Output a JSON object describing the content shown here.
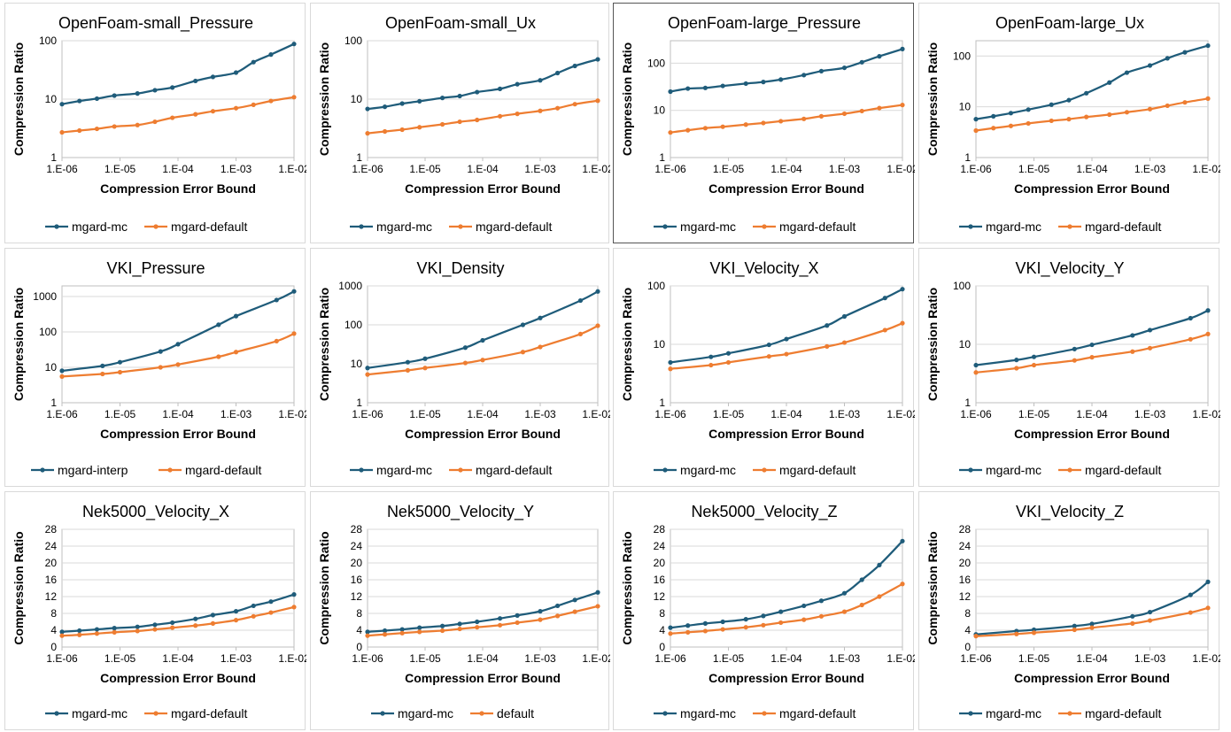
{
  "colors": {
    "mc": "#1f5c7a",
    "default": "#ee7d31",
    "grid": "#d9d9d9",
    "frame": "#bfbfbf"
  },
  "chart_data": [
    {
      "type": "line",
      "title": "OpenFoam-small_Pressure",
      "xlabel": "Compression Error Bound",
      "ylabel": "Compression Ratio",
      "xscale": "log",
      "yscale": "log",
      "xticks": [
        "1.E-06",
        "1.E-05",
        "1.E-04",
        "1.E-03",
        "1.E-02"
      ],
      "yticks": [
        "1",
        "10",
        "100"
      ],
      "ylim": [
        1,
        100
      ],
      "legend": "bottom",
      "series": [
        {
          "name": "mgard-mc",
          "x": [
            1e-06,
            2e-06,
            4e-06,
            8e-06,
            2e-05,
            4e-05,
            8e-05,
            0.0002,
            0.0004,
            0.001,
            0.002,
            0.004,
            0.01
          ],
          "y": [
            8.2,
            9.3,
            10.2,
            11.5,
            12.5,
            14.2,
            15.8,
            20.5,
            24,
            28.5,
            43,
            58,
            88
          ]
        },
        {
          "name": "mgard-default",
          "x": [
            1e-06,
            2e-06,
            4e-06,
            8e-06,
            2e-05,
            4e-05,
            8e-05,
            0.0002,
            0.0004,
            0.001,
            0.002,
            0.004,
            0.01
          ],
          "y": [
            2.7,
            2.9,
            3.1,
            3.4,
            3.6,
            4.1,
            4.8,
            5.5,
            6.2,
            7.0,
            8.0,
            9.3,
            10.8
          ]
        }
      ]
    },
    {
      "type": "line",
      "title": "OpenFoam-small_Ux",
      "xlabel": "Compression Error Bound",
      "ylabel": "Compression Ratio",
      "xscale": "log",
      "yscale": "log",
      "xticks": [
        "1.E-06",
        "1.E-05",
        "1.E-04",
        "1.E-03",
        "1.E-02"
      ],
      "yticks": [
        "1",
        "10",
        "100"
      ],
      "ylim": [
        1,
        100
      ],
      "legend": "bottom",
      "series": [
        {
          "name": "mgard-mc",
          "x": [
            1e-06,
            2e-06,
            4e-06,
            8e-06,
            2e-05,
            4e-05,
            8e-05,
            0.0002,
            0.0004,
            0.001,
            0.002,
            0.004,
            0.01
          ],
          "y": [
            6.8,
            7.4,
            8.4,
            9.2,
            10.5,
            11.3,
            13.2,
            15,
            18,
            21,
            28,
            37,
            48
          ]
        },
        {
          "name": "mgard-default",
          "x": [
            1e-06,
            2e-06,
            4e-06,
            8e-06,
            2e-05,
            4e-05,
            8e-05,
            0.0002,
            0.0004,
            0.001,
            0.002,
            0.004,
            0.01
          ],
          "y": [
            2.6,
            2.8,
            3.0,
            3.3,
            3.7,
            4.1,
            4.4,
            5.1,
            5.6,
            6.3,
            7.0,
            8.2,
            9.4
          ]
        }
      ]
    },
    {
      "type": "line",
      "title": "OpenFoam-large_Pressure",
      "xlabel": "Compression Error Bound",
      "ylabel": "Compression Ratio",
      "xscale": "log",
      "yscale": "log",
      "xticks": [
        "1.E-06",
        "1.E-05",
        "1.E-04",
        "1.E-03",
        "1.E-02"
      ],
      "yticks": [
        "1",
        "10",
        "100"
      ],
      "ylim": [
        1,
        300
      ],
      "legend": "bottom",
      "series": [
        {
          "name": "mgard-mc",
          "x": [
            1e-06,
            2e-06,
            4e-06,
            8e-06,
            2e-05,
            4e-05,
            8e-05,
            0.0002,
            0.0004,
            0.001,
            0.002,
            0.004,
            0.01
          ],
          "y": [
            25,
            29,
            30,
            33,
            37,
            40,
            45,
            56,
            68,
            80,
            105,
            140,
            200
          ]
        },
        {
          "name": "mgard-default",
          "x": [
            1e-06,
            2e-06,
            4e-06,
            8e-06,
            2e-05,
            4e-05,
            8e-05,
            0.0002,
            0.0004,
            0.001,
            0.002,
            0.004,
            0.01
          ],
          "y": [
            3.4,
            3.8,
            4.2,
            4.5,
            5.0,
            5.4,
            5.9,
            6.6,
            7.5,
            8.5,
            9.7,
            11.2,
            13
          ]
        }
      ]
    },
    {
      "type": "line",
      "title": "OpenFoam-large_Ux",
      "xlabel": "Compression Error Bound",
      "ylabel": "Compression Ratio",
      "xscale": "log",
      "yscale": "log",
      "xticks": [
        "1.E-06",
        "1.E-05",
        "1.E-04",
        "1.E-03",
        "1.E-02"
      ],
      "yticks": [
        "1",
        "10",
        "100"
      ],
      "ylim": [
        1,
        200
      ],
      "legend": "bottom",
      "series": [
        {
          "name": "mgard-mc",
          "x": [
            1e-06,
            2e-06,
            4e-06,
            8e-06,
            2e-05,
            4e-05,
            8e-05,
            0.0002,
            0.0004,
            0.001,
            0.002,
            0.004,
            0.01
          ],
          "y": [
            5.7,
            6.5,
            7.5,
            8.8,
            11,
            13.5,
            18.5,
            30,
            47,
            65,
            90,
            118,
            160
          ]
        },
        {
          "name": "mgard-default",
          "x": [
            1e-06,
            2e-06,
            4e-06,
            8e-06,
            2e-05,
            4e-05,
            8e-05,
            0.0002,
            0.0004,
            0.001,
            0.002,
            0.004,
            0.01
          ],
          "y": [
            3.4,
            3.8,
            4.2,
            4.7,
            5.3,
            5.7,
            6.3,
            7.0,
            7.8,
            9.0,
            10.5,
            12.2,
            14.5
          ]
        }
      ]
    },
    {
      "type": "line",
      "title": "VKI_Pressure",
      "xlabel": "Compression Error Bound",
      "ylabel": "Compression Ratio",
      "xscale": "log",
      "yscale": "log",
      "xticks": [
        "1.E-06",
        "1.E-05",
        "1.E-04",
        "1.E-03",
        "1.E-02"
      ],
      "yticks": [
        "1",
        "10",
        "100",
        "1000"
      ],
      "ylim": [
        1,
        2000
      ],
      "legend": "bottom",
      "series": [
        {
          "name": "mgard-interp",
          "x": [
            1e-06,
            5e-06,
            1e-05,
            5e-05,
            0.0001,
            0.0005,
            0.001,
            0.005,
            0.01
          ],
          "y": [
            8,
            11,
            14,
            28,
            45,
            160,
            280,
            800,
            1400
          ]
        },
        {
          "name": "mgard-default",
          "x": [
            1e-06,
            5e-06,
            1e-05,
            5e-05,
            0.0001,
            0.0005,
            0.001,
            0.005,
            0.01
          ],
          "y": [
            5.5,
            6.5,
            7.3,
            10,
            12,
            20,
            27,
            55,
            90
          ]
        }
      ]
    },
    {
      "type": "line",
      "title": "VKI_Density",
      "xlabel": "Compression Error Bound",
      "ylabel": "Compression Ratio",
      "xscale": "log",
      "yscale": "log",
      "xticks": [
        "1.E-06",
        "1.E-05",
        "1.E-04",
        "1.E-03",
        "1.E-02"
      ],
      "yticks": [
        "1",
        "10",
        "100",
        "1000"
      ],
      "ylim": [
        1,
        1000
      ],
      "legend": "bottom",
      "series": [
        {
          "name": "mgard-mc",
          "x": [
            1e-06,
            5e-06,
            1e-05,
            5e-05,
            0.0001,
            0.0005,
            0.001,
            0.005,
            0.01
          ],
          "y": [
            7.8,
            11,
            13.5,
            26,
            40,
            100,
            150,
            420,
            720
          ]
        },
        {
          "name": "mgard-default",
          "x": [
            1e-06,
            5e-06,
            1e-05,
            5e-05,
            0.0001,
            0.0005,
            0.001,
            0.005,
            0.01
          ],
          "y": [
            5.3,
            6.8,
            7.8,
            10.5,
            12.5,
            20,
            27,
            58,
            95
          ]
        }
      ]
    },
    {
      "type": "line",
      "title": "VKI_Velocity_X",
      "xlabel": "Compression Error Bound",
      "ylabel": "Compression Ratio",
      "xscale": "log",
      "yscale": "log",
      "xticks": [
        "1.E-06",
        "1.E-05",
        "1.E-04",
        "1.E-03",
        "1.E-02"
      ],
      "yticks": [
        "1",
        "10",
        "100"
      ],
      "ylim": [
        1,
        100
      ],
      "legend": "bottom",
      "series": [
        {
          "name": "mgard-mc",
          "x": [
            1e-06,
            5e-06,
            1e-05,
            5e-05,
            0.0001,
            0.0005,
            0.001,
            0.005,
            0.01
          ],
          "y": [
            4.9,
            6.1,
            7.0,
            9.8,
            12.3,
            21,
            30,
            62,
            88
          ]
        },
        {
          "name": "mgard-default",
          "x": [
            1e-06,
            5e-06,
            1e-05,
            5e-05,
            0.0001,
            0.0005,
            0.001,
            0.005,
            0.01
          ],
          "y": [
            3.8,
            4.4,
            4.9,
            6.2,
            6.8,
            9.2,
            10.7,
            17.5,
            23
          ]
        }
      ]
    },
    {
      "type": "line",
      "title": "VKI_Velocity_Y",
      "xlabel": "Compression Error Bound",
      "ylabel": "Compression Ratio",
      "xscale": "log",
      "yscale": "log",
      "xticks": [
        "1.E-06",
        "1.E-05",
        "1.E-04",
        "1.E-03",
        "1.E-02"
      ],
      "yticks": [
        "1",
        "10",
        "100"
      ],
      "ylim": [
        1,
        100
      ],
      "legend": "bottom",
      "series": [
        {
          "name": "mgard-mc",
          "x": [
            1e-06,
            5e-06,
            1e-05,
            5e-05,
            0.0001,
            0.0005,
            0.001,
            0.005,
            0.01
          ],
          "y": [
            4.4,
            5.4,
            6.1,
            8.3,
            9.8,
            14.2,
            17.5,
            28,
            38
          ]
        },
        {
          "name": "mgard-default",
          "x": [
            1e-06,
            5e-06,
            1e-05,
            5e-05,
            0.0001,
            0.0005,
            0.001,
            0.005,
            0.01
          ],
          "y": [
            3.3,
            3.9,
            4.4,
            5.3,
            6.0,
            7.5,
            8.6,
            12.2,
            15
          ]
        }
      ]
    },
    {
      "type": "line",
      "title": "Nek5000_Velocity_X",
      "xlabel": "Compression Error Bound",
      "ylabel": "Compression Ratio",
      "xscale": "log",
      "yscale": "linear",
      "xticks": [
        "1.E-06",
        "1.E-05",
        "1.E-04",
        "1.E-03",
        "1.E-02"
      ],
      "yticks": [
        "0",
        "4",
        "8",
        "12",
        "16",
        "20",
        "24",
        "28"
      ],
      "ylim": [
        0,
        28
      ],
      "legend": "bottom",
      "series": [
        {
          "name": "mgard-mc",
          "x": [
            1e-06,
            2e-06,
            4e-06,
            8e-06,
            2e-05,
            4e-05,
            8e-05,
            0.0002,
            0.0004,
            0.001,
            0.002,
            0.004,
            0.01
          ],
          "y": [
            3.6,
            3.9,
            4.2,
            4.5,
            4.8,
            5.3,
            5.8,
            6.7,
            7.6,
            8.5,
            9.8,
            10.8,
            12.5
          ]
        },
        {
          "name": "mgard-default",
          "x": [
            1e-06,
            2e-06,
            4e-06,
            8e-06,
            2e-05,
            4e-05,
            8e-05,
            0.0002,
            0.0004,
            0.001,
            0.002,
            0.004,
            0.01
          ],
          "y": [
            2.7,
            2.9,
            3.2,
            3.5,
            3.8,
            4.2,
            4.6,
            5.1,
            5.6,
            6.4,
            7.3,
            8.2,
            9.5
          ]
        }
      ]
    },
    {
      "type": "line",
      "title": "Nek5000_Velocity_Y",
      "xlabel": "Compression Error Bound",
      "ylabel": "Compression Ratio",
      "xscale": "log",
      "yscale": "linear",
      "xticks": [
        "1.E-06",
        "1.E-05",
        "1.E-04",
        "1.E-03",
        "1.E-02"
      ],
      "yticks": [
        "0",
        "4",
        "8",
        "12",
        "16",
        "20",
        "24",
        "28"
      ],
      "ylim": [
        0,
        28
      ],
      "legend": "bottom",
      "series": [
        {
          "name": "mgard-mc",
          "x": [
            1e-06,
            2e-06,
            4e-06,
            8e-06,
            2e-05,
            4e-05,
            8e-05,
            0.0002,
            0.0004,
            0.001,
            0.002,
            0.004,
            0.01
          ],
          "y": [
            3.6,
            3.9,
            4.2,
            4.6,
            5.0,
            5.5,
            6.0,
            6.8,
            7.5,
            8.5,
            9.8,
            11.2,
            13
          ]
        },
        {
          "name": "default",
          "x": [
            1e-06,
            2e-06,
            4e-06,
            8e-06,
            2e-05,
            4e-05,
            8e-05,
            0.0002,
            0.0004,
            0.001,
            0.002,
            0.004,
            0.01
          ],
          "y": [
            2.7,
            3.0,
            3.3,
            3.6,
            3.9,
            4.3,
            4.7,
            5.2,
            5.8,
            6.5,
            7.4,
            8.4,
            9.7
          ]
        }
      ]
    },
    {
      "type": "line",
      "title": "Nek5000_Velocity_Z",
      "xlabel": "Compression Error Bound",
      "ylabel": "Compression Ratio",
      "xscale": "log",
      "yscale": "linear",
      "xticks": [
        "1.E-06",
        "1.E-05",
        "1.E-04",
        "1.E-03",
        "1.E-02"
      ],
      "yticks": [
        "0",
        "4",
        "8",
        "12",
        "16",
        "20",
        "24",
        "28"
      ],
      "ylim": [
        0,
        28
      ],
      "legend": "bottom",
      "series": [
        {
          "name": "mgard-mc",
          "x": [
            1e-06,
            2e-06,
            4e-06,
            8e-06,
            2e-05,
            4e-05,
            8e-05,
            0.0002,
            0.0004,
            0.001,
            0.002,
            0.004,
            0.01
          ],
          "y": [
            4.6,
            5.1,
            5.6,
            6.0,
            6.6,
            7.4,
            8.4,
            9.8,
            11,
            12.8,
            16,
            19.5,
            25.2
          ]
        },
        {
          "name": "mgard-default",
          "x": [
            1e-06,
            2e-06,
            4e-06,
            8e-06,
            2e-05,
            4e-05,
            8e-05,
            0.0002,
            0.0004,
            0.001,
            0.002,
            0.004,
            0.01
          ],
          "y": [
            3.2,
            3.5,
            3.8,
            4.2,
            4.7,
            5.2,
            5.8,
            6.5,
            7.3,
            8.4,
            10,
            12,
            15
          ]
        }
      ]
    },
    {
      "type": "line",
      "title": "VKI_Velocity_Z",
      "xlabel": "Compression Error Bound",
      "ylabel": "Compression Ratio",
      "xscale": "log",
      "yscale": "linear",
      "xticks": [
        "1.E-06",
        "1.E-05",
        "1.E-04",
        "1.E-03",
        "1.E-02"
      ],
      "yticks": [
        "0",
        "4",
        "8",
        "12",
        "16",
        "20",
        "24",
        "28"
      ],
      "ylim": [
        0,
        28
      ],
      "legend": "bottom",
      "series": [
        {
          "name": "mgard-mc",
          "x": [
            1e-06,
            5e-06,
            1e-05,
            5e-05,
            0.0001,
            0.0005,
            0.001,
            0.005,
            0.01
          ],
          "y": [
            3.0,
            3.8,
            4.1,
            5.0,
            5.5,
            7.3,
            8.3,
            12.4,
            15.5
          ]
        },
        {
          "name": "mgard-default",
          "x": [
            1e-06,
            5e-06,
            1e-05,
            5e-05,
            0.0001,
            0.0005,
            0.001,
            0.005,
            0.01
          ],
          "y": [
            2.6,
            3.1,
            3.4,
            4.1,
            4.6,
            5.6,
            6.3,
            8.2,
            9.3
          ]
        }
      ]
    }
  ]
}
